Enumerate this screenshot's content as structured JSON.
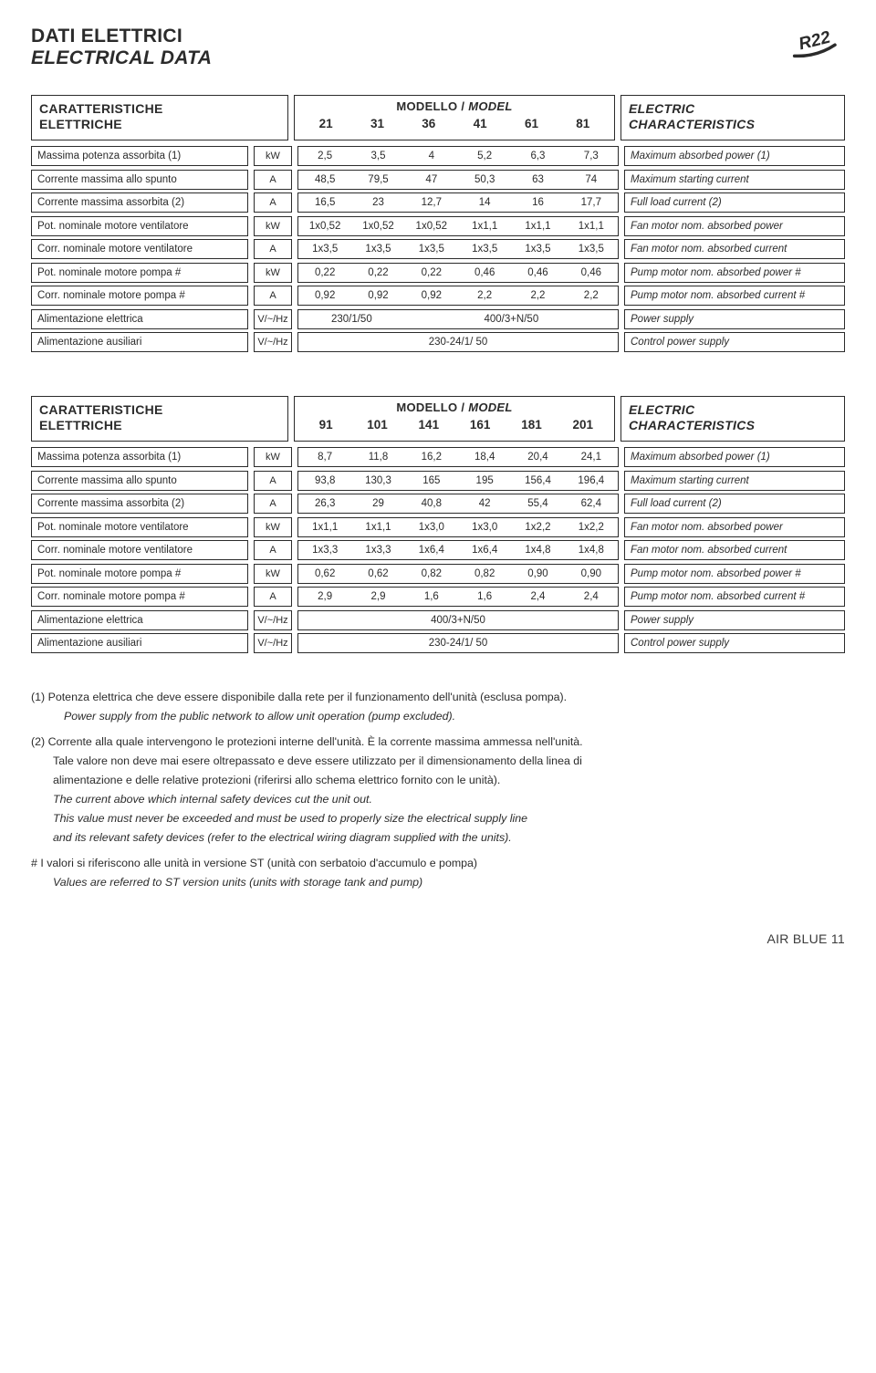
{
  "page_title_it": "DATI ELETTRICI",
  "page_title_en": "ELECTRICAL DATA",
  "r22_label": "R22",
  "section_left_it": "CARATTERISTICHE",
  "section_left_en": "ELETTRICHE",
  "section_mid_title": "MODELLO / ",
  "section_mid_title_it": "MODEL",
  "section_right_it": "ELECTRIC",
  "section_right_en": "CHARACTERISTICS",
  "table1": {
    "models": [
      "21",
      "31",
      "36",
      "41",
      "61",
      "81"
    ],
    "rows": [
      {
        "label": "Massima potenza assorbita (1)",
        "unit": "kW",
        "vals": [
          "2,5",
          "3,5",
          "4",
          "5,2",
          "6,3",
          "7,3"
        ],
        "right": "Maximum absorbed power (1)"
      },
      {
        "label": "Corrente massima allo spunto",
        "unit": "A",
        "vals": [
          "48,5",
          "79,5",
          "47",
          "50,3",
          "63",
          "74"
        ],
        "right": "Maximum starting current"
      },
      {
        "label": "Corrente massima assorbita (2)",
        "unit": "A",
        "vals": [
          "16,5",
          "23",
          "12,7",
          "14",
          "16",
          "17,7"
        ],
        "right": "Full load current (2)"
      },
      {
        "label": "Pot. nominale motore ventilatore",
        "unit": "kW",
        "vals": [
          "1x0,52",
          "1x0,52",
          "1x0,52",
          "1x1,1",
          "1x1,1",
          "1x1,1"
        ],
        "right": "Fan motor nom. absorbed power"
      },
      {
        "label": "Corr. nominale motore ventilatore",
        "unit": "A",
        "vals": [
          "1x3,5",
          "1x3,5",
          "1x3,5",
          "1x3,5",
          "1x3,5",
          "1x3,5"
        ],
        "right": "Fan motor nom. absorbed current"
      },
      {
        "label": "Pot. nominale motore pompa   #",
        "unit": "kW",
        "vals": [
          "0,22",
          "0,22",
          "0,22",
          "0,46",
          "0,46",
          "0,46"
        ],
        "right": "Pump motor nom. absorbed power   #"
      },
      {
        "label": "Corr. nominale motore pompa  #",
        "unit": "A",
        "vals": [
          "0,92",
          "0,92",
          "0,92",
          "2,2",
          "2,2",
          "2,2"
        ],
        "right": "Pump motor nom. absorbed current  #"
      }
    ],
    "row_ps": {
      "label": "Alimentazione elettrica",
      "unit": "V/~/Hz",
      "v1": "230/1/50",
      "v2": "400/3+N/50",
      "right": "Power supply"
    },
    "row_aux": {
      "label": "Alimentazione ausiliari",
      "unit": "V/~/Hz",
      "v": "230-24/1/ 50",
      "right": "Control power supply"
    }
  },
  "table2": {
    "models": [
      "91",
      "101",
      "141",
      "161",
      "181",
      "201"
    ],
    "rows": [
      {
        "label": "Massima potenza assorbita (1)",
        "unit": "kW",
        "vals": [
          "8,7",
          "11,8",
          "16,2",
          "18,4",
          "20,4",
          "24,1"
        ],
        "right": "Maximum absorbed power (1)"
      },
      {
        "label": "Corrente massima allo spunto",
        "unit": "A",
        "vals": [
          "93,8",
          "130,3",
          "165",
          "195",
          "156,4",
          "196,4"
        ],
        "right": "Maximum starting current"
      },
      {
        "label": "Corrente massima assorbita (2)",
        "unit": "A",
        "vals": [
          "26,3",
          "29",
          "40,8",
          "42",
          "55,4",
          "62,4"
        ],
        "right": "Full load current (2)"
      },
      {
        "label": "Pot. nominale motore ventilatore",
        "unit": "kW",
        "vals": [
          "1x1,1",
          "1x1,1",
          "1x3,0",
          "1x3,0",
          "1x2,2",
          "1x2,2"
        ],
        "right": "Fan motor nom. absorbed power"
      },
      {
        "label": "Corr. nominale motore ventilatore",
        "unit": "A",
        "vals": [
          "1x3,3",
          "1x3,3",
          "1x6,4",
          "1x6,4",
          "1x4,8",
          "1x4,8"
        ],
        "right": "Fan motor nom. absorbed current"
      },
      {
        "label": "Pot. nominale motore pompa   #",
        "unit": "kW",
        "vals": [
          "0,62",
          "0,62",
          "0,82",
          "0,82",
          "0,90",
          "0,90"
        ],
        "right": "Pump motor nom. absorbed power   #"
      },
      {
        "label": "Corr. nominale motore pompa  #",
        "unit": "A",
        "vals": [
          "2,9",
          "2,9",
          "1,6",
          "1,6",
          "2,4",
          "2,4"
        ],
        "right": "Pump motor nom. absorbed current  #"
      }
    ],
    "row_ps": {
      "label": "Alimentazione elettrica",
      "unit": "V/~/Hz",
      "v": "400/3+N/50",
      "right": "Power supply"
    },
    "row_aux": {
      "label": "Alimentazione ausiliari",
      "unit": "V/~/Hz",
      "v": "230-24/1/ 50",
      "right": "Control power supply"
    }
  },
  "notes": {
    "n1a": "(1) Potenza elettrica che deve essere disponibile dalla rete per il funzionamento dell'unità (esclusa pompa).",
    "n1b": "Power supply from the public network to allow unit operation (pump excluded).",
    "n2a": "(2) Corrente alla quale intervengono le protezioni interne dell'unità. È la corrente massima ammessa nell'unità.",
    "n2b": "Tale valore non deve mai esere oltrepassato e deve essere utilizzato per il dimensionamento della linea di",
    "n2c": "alimentazione e delle relative protezioni (riferirsi allo schema elettrico fornito con le unità).",
    "n2d": "The current above which internal safety devices cut the unit out.",
    "n2e": "This value must never be exceeded and must be used to properly size the electrical supply line",
    "n2f": "and its relevant safety devices (refer to the electrical wiring diagram supplied with the units).",
    "nha": "#   I valori si riferiscono alle unità in versione ST (unità con serbatoio d'accumulo e pompa)",
    "nhb": "Values are referred to ST version units (units with storage tank and pump)"
  },
  "footer": "AIR BLUE 11"
}
